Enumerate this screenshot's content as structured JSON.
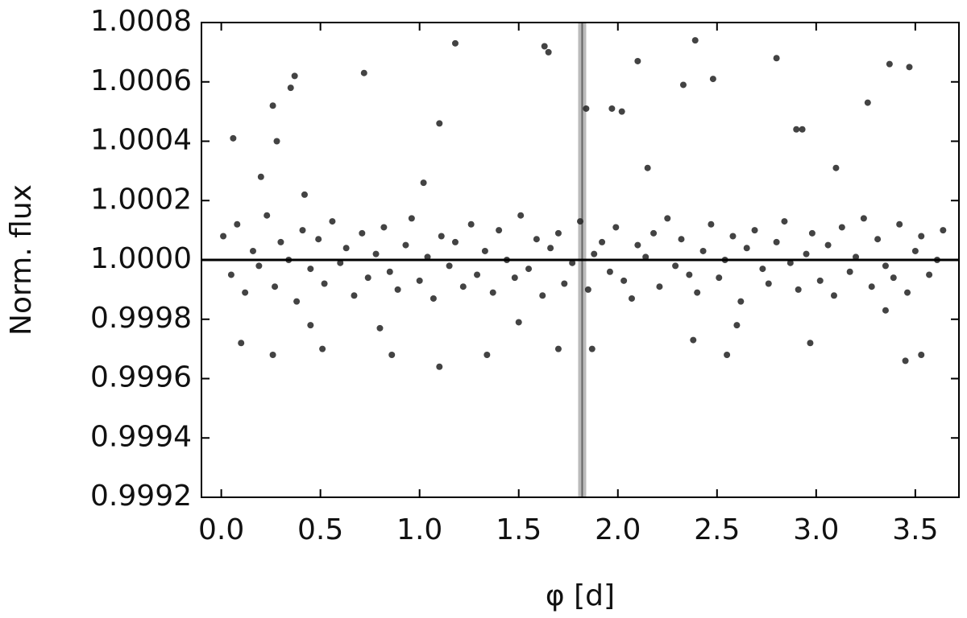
{
  "chart_data": {
    "type": "scatter",
    "xlabel": "φ [d]",
    "ylabel": "Norm. flux",
    "xlim": [
      -0.1,
      3.72
    ],
    "ylim": [
      0.9992,
      1.0008
    ],
    "xticks": [
      {
        "value": 0,
        "label": "0.0"
      },
      0.5,
      {
        "value": 1,
        "label": "1.0"
      },
      1.5,
      {
        "value": 2,
        "label": "2.0"
      },
      2.5,
      {
        "value": 3,
        "label": "3.0"
      },
      3.5
    ],
    "yticks": [
      0.9992,
      0.9994,
      0.9996,
      0.9998,
      {
        "value": 1,
        "label": "1.0000"
      },
      1.0002,
      1.0004,
      1.0006,
      1.0008
    ],
    "hline": 1,
    "highlight_x": 1.82,
    "color": "#222222",
    "x": [
      0.01,
      0.05,
      0.08,
      0.12,
      0.16,
      0.19,
      0.23,
      0.27,
      0.3,
      0.34,
      0.38,
      0.41,
      0.45,
      0.49,
      0.52,
      0.56,
      0.6,
      0.63,
      0.67,
      0.71,
      0.74,
      0.78,
      0.82,
      0.85,
      0.89,
      0.93,
      0.96,
      1.0,
      1.04,
      1.07,
      1.11,
      1.15,
      1.18,
      1.22,
      1.26,
      1.29,
      1.33,
      1.37,
      1.4,
      1.44,
      1.48,
      1.51,
      1.55,
      1.59,
      1.62,
      1.66,
      1.7,
      1.73,
      1.77,
      1.81,
      1.85,
      1.88,
      1.92,
      1.96,
      1.99,
      2.03,
      2.07,
      2.1,
      2.14,
      2.18,
      2.21,
      2.25,
      2.29,
      2.32,
      2.36,
      2.4,
      2.43,
      2.47,
      2.51,
      2.54,
      2.58,
      2.62,
      2.65,
      2.69,
      2.73,
      2.76,
      2.8,
      2.84,
      2.87,
      2.91,
      2.95,
      2.98,
      3.02,
      3.06,
      3.09,
      3.13,
      3.17,
      3.2,
      3.24,
      3.28,
      3.31,
      3.35,
      3.39,
      3.42,
      3.46,
      3.5,
      3.53,
      3.57,
      3.61,
      3.64,
      0.06,
      0.26,
      0.28,
      0.35,
      0.37,
      0.72,
      1.18,
      1.63,
      1.65,
      1.84,
      2.1,
      2.33,
      2.39,
      2.48,
      2.8,
      3.37,
      3.47,
      1.1,
      1.97,
      2.02,
      3.26,
      2.9,
      2.93,
      0.26,
      0.51,
      0.86,
      1.1,
      1.34,
      1.7,
      1.87,
      2.55,
      2.97,
      3.45,
      3.53,
      0.1,
      2.38,
      0.2,
      0.42,
      1.02,
      2.15,
      3.1,
      0.45,
      1.5,
      2.6,
      3.35,
      0.8
    ],
    "y": [
      1.00008,
      0.99995,
      1.00012,
      0.99989,
      1.00003,
      0.99998,
      1.00015,
      0.99991,
      1.00006,
      1.0,
      0.99986,
      1.0001,
      0.99997,
      1.00007,
      0.99992,
      1.00013,
      0.99999,
      1.00004,
      0.99988,
      1.00009,
      0.99994,
      1.00002,
      1.00011,
      0.99996,
      0.9999,
      1.00005,
      1.00014,
      0.99993,
      1.00001,
      0.99987,
      1.00008,
      0.99998,
      1.00006,
      0.99991,
      1.00012,
      0.99995,
      1.00003,
      0.99989,
      1.0001,
      1.0,
      0.99994,
      1.00015,
      0.99997,
      1.00007,
      0.99988,
      1.00004,
      1.00009,
      0.99992,
      0.99999,
      1.00013,
      0.9999,
      1.00002,
      1.00006,
      0.99996,
      1.00011,
      0.99993,
      0.99987,
      1.00005,
      1.00001,
      1.00009,
      0.99991,
      1.00014,
      0.99998,
      1.00007,
      0.99995,
      0.99989,
      1.00003,
      1.00012,
      0.99994,
      1.0,
      1.00008,
      0.99986,
      1.00004,
      1.0001,
      0.99997,
      0.99992,
      1.00006,
      1.00013,
      0.99999,
      0.9999,
      1.00002,
      1.00009,
      0.99993,
      1.00005,
      0.99988,
      1.00011,
      0.99996,
      1.00001,
      1.00014,
      0.99991,
      1.00007,
      0.99998,
      0.99994,
      1.00012,
      0.99989,
      1.00003,
      1.00008,
      0.99995,
      1.0,
      1.0001,
      1.00041,
      1.00052,
      1.0004,
      1.00058,
      1.00062,
      1.00063,
      1.00073,
      1.00072,
      1.0007,
      1.00051,
      1.00067,
      1.00059,
      1.00074,
      1.00061,
      1.00068,
      1.00066,
      1.00065,
      1.00046,
      1.00051,
      1.0005,
      1.00053,
      1.00044,
      1.00044,
      0.99968,
      0.9997,
      0.99968,
      0.99964,
      0.99968,
      0.9997,
      0.9997,
      0.99968,
      0.99972,
      0.99966,
      0.99968,
      0.99972,
      0.99973,
      1.00028,
      1.00022,
      1.00026,
      1.00031,
      1.00031,
      0.99978,
      0.99979,
      0.99978,
      0.99983,
      0.99977
    ]
  }
}
